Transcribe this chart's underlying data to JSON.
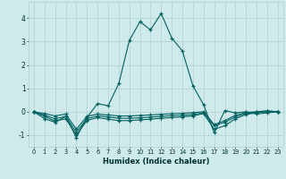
{
  "xlabel": "Humidex (Indice chaleur)",
  "bg_color": "#ceeaea",
  "grid_color": "#b0d0d0",
  "line_color": "#006060",
  "xlim": [
    -0.5,
    23.5
  ],
  "ylim": [
    -1.5,
    4.7
  ],
  "yticks": [
    -1,
    0,
    1,
    2,
    3,
    4
  ],
  "xticks": [
    0,
    1,
    2,
    3,
    4,
    5,
    6,
    7,
    8,
    9,
    10,
    11,
    12,
    13,
    14,
    15,
    16,
    17,
    18,
    19,
    20,
    21,
    22,
    23
  ],
  "main_y": [
    0.0,
    -0.3,
    -0.45,
    -0.2,
    -1.1,
    -0.25,
    0.35,
    0.25,
    1.2,
    3.05,
    3.85,
    3.5,
    4.2,
    3.15,
    2.6,
    1.1,
    0.3,
    -0.9,
    0.05,
    -0.05,
    0.0,
    -0.1,
    -0.05,
    0.0
  ],
  "line2_y": [
    0.0,
    -0.2,
    -0.4,
    -0.3,
    -1.0,
    -0.38,
    -0.25,
    -0.32,
    -0.38,
    -0.38,
    -0.35,
    -0.32,
    -0.28,
    -0.25,
    -0.22,
    -0.18,
    -0.08,
    -0.75,
    -0.6,
    -0.3,
    -0.12,
    -0.04,
    0.0,
    0.0
  ],
  "line3_y": [
    0.0,
    -0.15,
    -0.3,
    -0.2,
    -0.88,
    -0.3,
    -0.18,
    -0.22,
    -0.28,
    -0.28,
    -0.26,
    -0.23,
    -0.2,
    -0.17,
    -0.15,
    -0.12,
    -0.04,
    -0.6,
    -0.45,
    -0.22,
    -0.07,
    -0.02,
    0.02,
    0.0
  ],
  "line4_y": [
    0.0,
    -0.08,
    -0.18,
    -0.1,
    -0.75,
    -0.2,
    -0.1,
    -0.14,
    -0.18,
    -0.18,
    -0.16,
    -0.14,
    -0.11,
    -0.09,
    -0.07,
    -0.04,
    0.0,
    -0.55,
    -0.38,
    -0.15,
    -0.03,
    0.0,
    0.04,
    0.0
  ]
}
